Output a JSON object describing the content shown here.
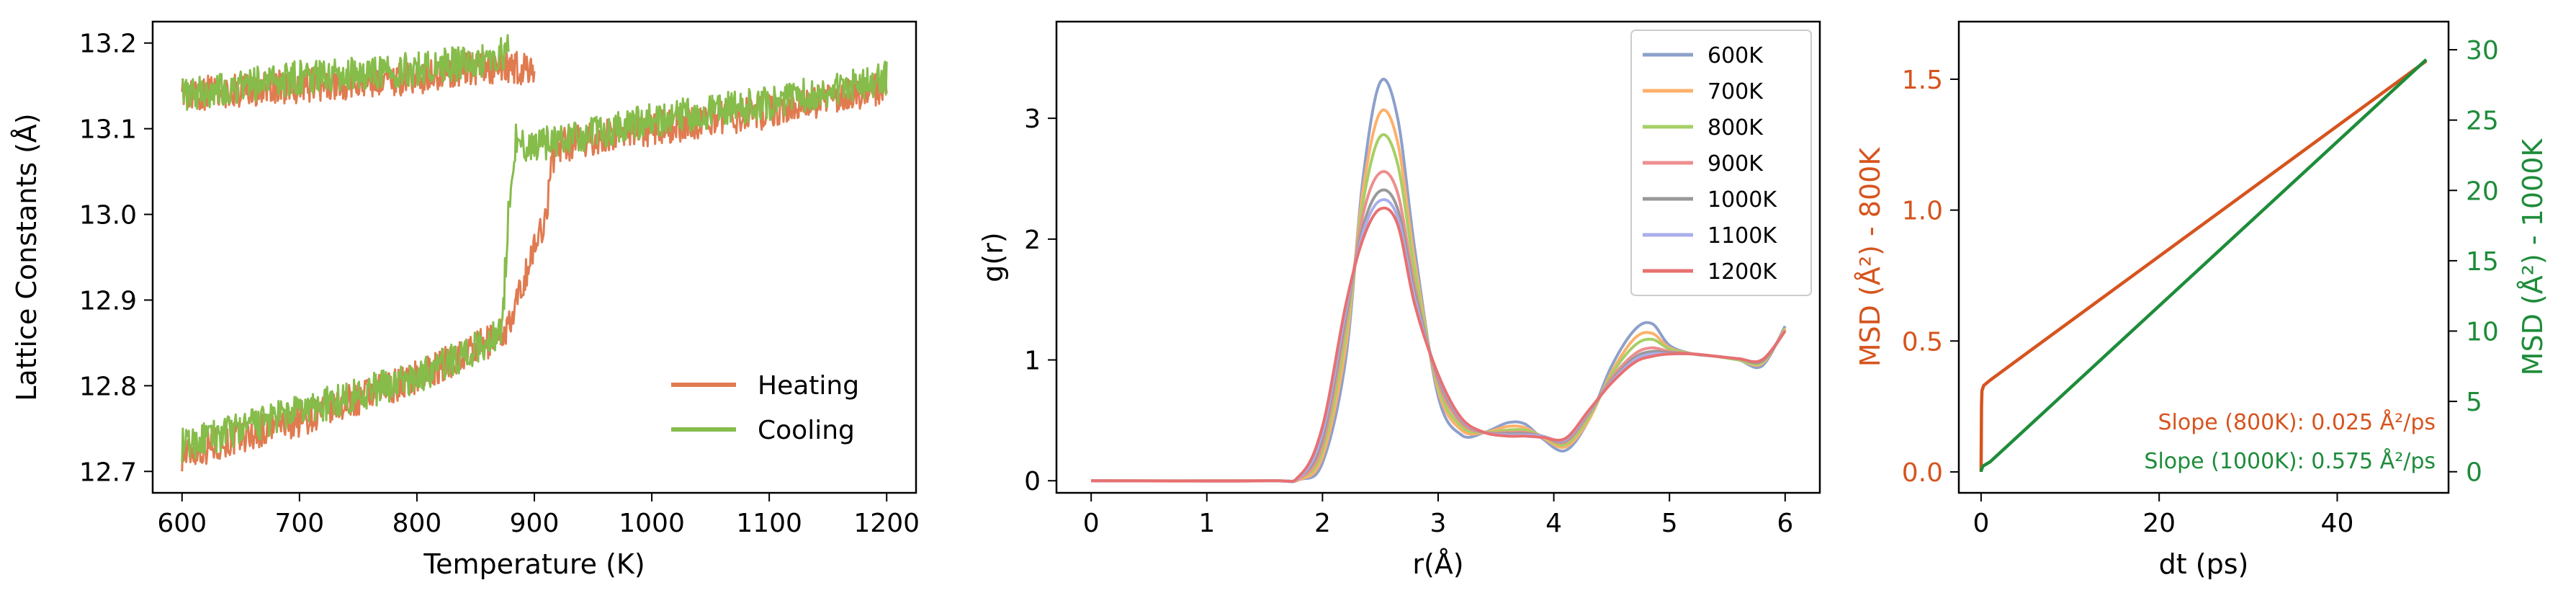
{
  "chart_data": [
    {
      "type": "line",
      "xlabel": "Temperature (K)",
      "ylabel": "Lattice Constants (Å)",
      "xlim": [
        575,
        1225
      ],
      "ylim": [
        12.675,
        13.225
      ],
      "xticks": [
        600,
        700,
        800,
        900,
        1000,
        1100,
        1200
      ],
      "xtick_labels": [
        "600",
        "700",
        "800",
        "900",
        "1000",
        "1100",
        "1200"
      ],
      "yticks": [
        12.7,
        12.8,
        12.9,
        13.0,
        13.1,
        13.2
      ],
      "ytick_labels": [
        "12.7",
        "12.8",
        "12.9",
        "13.0",
        "13.1",
        "13.2"
      ],
      "legend_position": "lower-right",
      "noise_band": 0.04,
      "series": [
        {
          "name": "Heating",
          "color": "#e07b50",
          "branches": [
            {
              "x": [
                600,
                700,
                800,
                860,
                880,
                890,
                900,
                910,
                915,
                920
              ],
              "y": [
                12.72,
                12.76,
                12.81,
                12.85,
                12.87,
                12.92,
                12.96,
                13.0,
                13.06,
                13.09
              ]
            },
            {
              "x": [
                600,
                700,
                800,
                850,
                900
              ],
              "y": [
                13.14,
                13.15,
                13.16,
                13.17,
                13.17
              ]
            },
            {
              "x": [
                920,
                1000,
                1100,
                1200
              ],
              "y": [
                13.08,
                13.1,
                13.12,
                13.15
              ]
            }
          ]
        },
        {
          "name": "Cooling",
          "color": "#86bc4a",
          "branches": [
            {
              "x": [
                600,
                700,
                800,
                860,
                873,
                875,
                878,
                882,
                885
              ],
              "y": [
                12.73,
                12.77,
                12.81,
                12.85,
                12.87,
                12.93,
                13.0,
                13.06,
                13.1
              ]
            },
            {
              "x": [
                600,
                700,
                800,
                860,
                878
              ],
              "y": [
                13.14,
                13.16,
                13.17,
                13.18,
                13.19
              ]
            },
            {
              "x": [
                885,
                900,
                1000,
                1100,
                1200
              ],
              "y": [
                13.08,
                13.08,
                13.11,
                13.13,
                13.16
              ]
            }
          ]
        }
      ]
    },
    {
      "type": "line",
      "xlabel": "r(Å)",
      "ylabel": "g(r)",
      "xlim": [
        -0.3,
        6.3
      ],
      "ylim": [
        -0.1,
        3.8
      ],
      "xticks": [
        0,
        1,
        2,
        3,
        4,
        5,
        6
      ],
      "xtick_labels": [
        "0",
        "1",
        "2",
        "3",
        "4",
        "5",
        "6"
      ],
      "yticks": [
        0,
        1,
        2,
        3
      ],
      "ytick_labels": [
        "0",
        "1",
        "2",
        "3"
      ],
      "legend_position": "upper-right",
      "x": [
        0.0,
        1.5,
        1.8,
        2.0,
        2.2,
        2.35,
        2.5,
        2.65,
        2.8,
        3.0,
        3.2,
        3.4,
        3.6,
        3.75,
        3.9,
        4.1,
        4.3,
        4.5,
        4.7,
        4.85,
        5.0,
        5.2,
        5.4,
        5.6,
        5.8,
        6.0
      ],
      "series": [
        {
          "name": "600K",
          "color": "#8da0cb",
          "values": [
            0,
            0,
            0.01,
            0.15,
            1.0,
            2.5,
            3.3,
            3.0,
            1.9,
            0.7,
            0.38,
            0.4,
            0.48,
            0.47,
            0.35,
            0.25,
            0.5,
            0.95,
            1.25,
            1.3,
            1.12,
            1.05,
            1.03,
            1.0,
            0.95,
            1.28
          ]
        },
        {
          "name": "700K",
          "color": "#fdb06b",
          "values": [
            0,
            0,
            0.01,
            0.2,
            1.1,
            2.4,
            3.05,
            2.8,
            1.8,
            0.75,
            0.42,
            0.4,
            0.45,
            0.44,
            0.36,
            0.28,
            0.5,
            0.9,
            1.18,
            1.22,
            1.1,
            1.05,
            1.03,
            1.0,
            0.97,
            1.26
          ]
        },
        {
          "name": "800K",
          "color": "#a6cf66",
          "values": [
            0,
            0,
            0.02,
            0.25,
            1.2,
            2.3,
            2.85,
            2.62,
            1.72,
            0.78,
            0.45,
            0.4,
            0.42,
            0.42,
            0.37,
            0.3,
            0.52,
            0.88,
            1.12,
            1.17,
            1.09,
            1.05,
            1.03,
            1.0,
            0.98,
            1.25
          ]
        },
        {
          "name": "900K",
          "color": "#ee8e8e",
          "values": [
            0,
            0,
            0.02,
            0.3,
            1.3,
            2.2,
            2.55,
            2.38,
            1.6,
            0.82,
            0.48,
            0.4,
            0.4,
            0.4,
            0.37,
            0.32,
            0.55,
            0.85,
            1.05,
            1.1,
            1.07,
            1.05,
            1.03,
            1.01,
            0.99,
            1.24
          ]
        },
        {
          "name": "1000K",
          "color": "#999999",
          "values": [
            0,
            0,
            0.03,
            0.35,
            1.35,
            2.1,
            2.4,
            2.25,
            1.55,
            0.85,
            0.5,
            0.4,
            0.39,
            0.39,
            0.37,
            0.33,
            0.56,
            0.83,
            1.02,
            1.07,
            1.06,
            1.05,
            1.03,
            1.01,
            0.99,
            1.24
          ]
        },
        {
          "name": "1100K",
          "color": "#a9aeeb",
          "values": [
            0,
            0,
            0.03,
            0.4,
            1.4,
            2.05,
            2.32,
            2.18,
            1.5,
            0.87,
            0.51,
            0.4,
            0.38,
            0.38,
            0.37,
            0.34,
            0.57,
            0.82,
            1.0,
            1.05,
            1.05,
            1.05,
            1.03,
            1.01,
            1.0,
            1.24
          ]
        },
        {
          "name": "1200K",
          "color": "#e87070",
          "values": [
            0,
            0,
            0.04,
            0.45,
            1.45,
            2.0,
            2.25,
            2.12,
            1.45,
            0.88,
            0.52,
            0.4,
            0.37,
            0.37,
            0.36,
            0.35,
            0.58,
            0.81,
            0.98,
            1.03,
            1.05,
            1.05,
            1.03,
            1.01,
            1.0,
            1.24
          ]
        }
      ]
    },
    {
      "type": "line",
      "xlabel": "dt (ps)",
      "ylabel": "MSD (Å²) - 800K",
      "ylabel_right": "MSD (Å²) - 1000K",
      "xlim": [
        -2.5,
        52.5
      ],
      "ylim": [
        -0.08,
        1.72
      ],
      "ylim_right": [
        -1.5,
        32.0
      ],
      "xticks": [
        0,
        20,
        40
      ],
      "xtick_labels": [
        "0",
        "20",
        "40"
      ],
      "yticks": [
        0.0,
        0.5,
        1.0,
        1.5
      ],
      "ytick_labels": [
        "0.0",
        "0.5",
        "1.0",
        "1.5"
      ],
      "yticks_right": [
        0,
        5,
        10,
        15,
        20,
        25,
        30
      ],
      "ytick_labels_right": [
        "0",
        "5",
        "10",
        "15",
        "20",
        "25",
        "30"
      ],
      "left_axis_color": "#d6541e",
      "right_axis_color": "#1e8c3a",
      "series": [
        {
          "name": "800K",
          "axis": "left",
          "color": "#d6541e",
          "x": [
            0,
            0.02,
            0.05,
            0.1,
            0.3,
            1,
            5,
            50
          ],
          "values": [
            0,
            0.12,
            0.25,
            0.31,
            0.33,
            0.35,
            0.45,
            1.57
          ]
        },
        {
          "name": "1000K",
          "axis": "right",
          "color": "#1e8c3a",
          "x": [
            0,
            0.05,
            0.2,
            1,
            50
          ],
          "values": [
            0,
            0.15,
            0.4,
            0.7,
            29.3
          ]
        }
      ],
      "annotations": [
        {
          "text": "Slope (800K): 0.025 Å²/ps",
          "color": "#d6541e"
        },
        {
          "text": "Slope (1000K): 0.575 Å²/ps",
          "color": "#1e8c3a"
        }
      ]
    }
  ]
}
